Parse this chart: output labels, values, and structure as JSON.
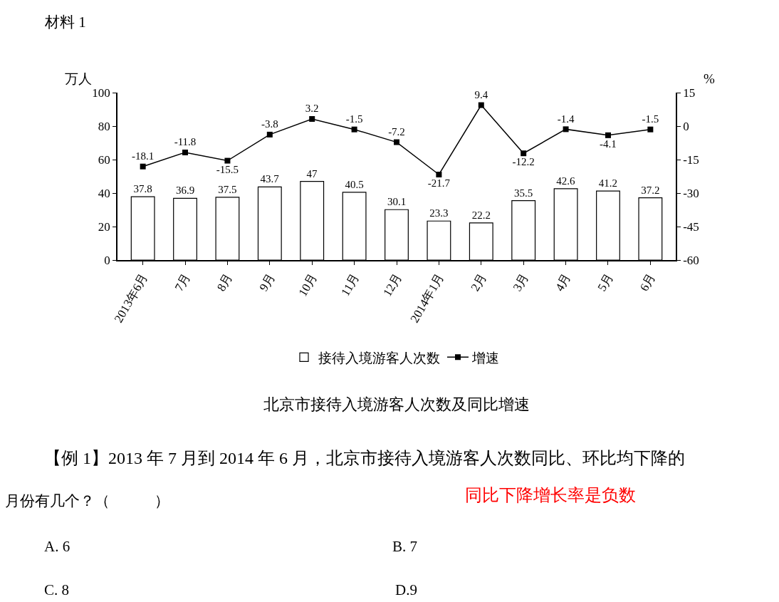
{
  "chart_data": {
    "type": "bar",
    "title": "北京市接待入境游客人次数及同比增速",
    "ylabel": "万人",
    "y2label": "%",
    "categories": [
      "2013年6月",
      "7月",
      "8月",
      "9月",
      "10月",
      "11月",
      "12月",
      "2014年1月",
      "2月",
      "3月",
      "4月",
      "5月",
      "6月"
    ],
    "series": [
      {
        "name": "接待入境游客人次数",
        "color": "#ffffff",
        "values": [
          37.8,
          36.9,
          37.5,
          43.7,
          47,
          40.5,
          30.1,
          23.3,
          22.2,
          35.5,
          42.6,
          41.2,
          37.2
        ]
      },
      {
        "name": "增速",
        "type": "line",
        "axis": "y2",
        "color": "#000000",
        "values": [
          -18.1,
          -11.8,
          -15.5,
          -3.8,
          3.2,
          -1.5,
          -7.2,
          -21.7,
          9.4,
          -12.2,
          -1.4,
          -4.1,
          -1.5
        ]
      }
    ],
    "ylim": [
      0,
      100
    ],
    "yticks": [
      0,
      20,
      40,
      60,
      80,
      100
    ],
    "y2lim": [
      -60,
      15
    ],
    "y2ticks": [
      -60,
      -45,
      -30,
      -15,
      0,
      15
    ],
    "data_labels": true,
    "marker": "square",
    "legend": "bottom",
    "annotations": [
      "材料 1",
      "【例 1】2013 年 7 月到 2014 年 6 月，北京市接待入境游客人次数同比、环比均下降的",
      "月份有几个？（　　　）",
      "同比下降增长率是负数",
      "A. 6",
      "B. 7",
      "C. 8",
      "D.9"
    ]
  }
}
